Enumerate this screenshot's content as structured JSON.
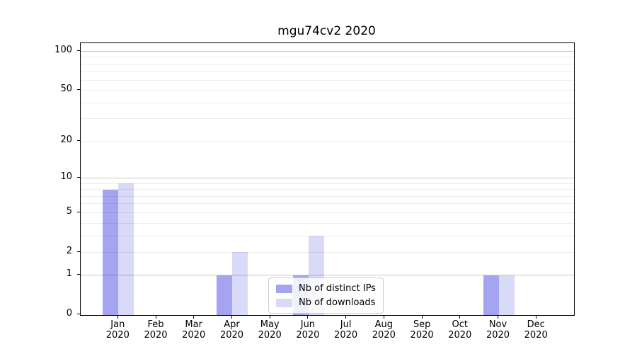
{
  "title": "mgu74cv2 2020",
  "chart_data": {
    "type": "bar",
    "title": "mgu74cv2 2020",
    "categories": [
      "Jan",
      "Feb",
      "Mar",
      "Apr",
      "May",
      "Jun",
      "Jul",
      "Aug",
      "Sep",
      "Oct",
      "Nov",
      "Dec"
    ],
    "category_year": "2020",
    "series": [
      {
        "name": "Nb of distinct IPs",
        "color": "#a4a4f0",
        "values": [
          8,
          0,
          0,
          1,
          0,
          1,
          0,
          0,
          0,
          0,
          1,
          0
        ]
      },
      {
        "name": "Nb of downloads",
        "color": "#d9d9f8",
        "values": [
          9,
          0,
          0,
          2,
          0,
          3,
          0,
          0,
          0,
          0,
          1,
          0
        ]
      }
    ],
    "yscale": "log1p",
    "ylim": [
      0,
      115
    ],
    "y_ticks": [
      0,
      1,
      2,
      5,
      10,
      20,
      50,
      100
    ],
    "grid": {
      "major_values": [
        1,
        10,
        100
      ],
      "minor_values": [
        2,
        3,
        4,
        5,
        6,
        7,
        8,
        9,
        20,
        30,
        40,
        50,
        60,
        70,
        80,
        90
      ],
      "major_color": "#00000038",
      "minor_color": "#00000012"
    },
    "legend_position": "lower center",
    "xlabel": "",
    "ylabel": ""
  },
  "colors": {
    "background": "#ffffff",
    "axis": "#000000",
    "text": "#000000",
    "legend_border": "#cccccc"
  }
}
